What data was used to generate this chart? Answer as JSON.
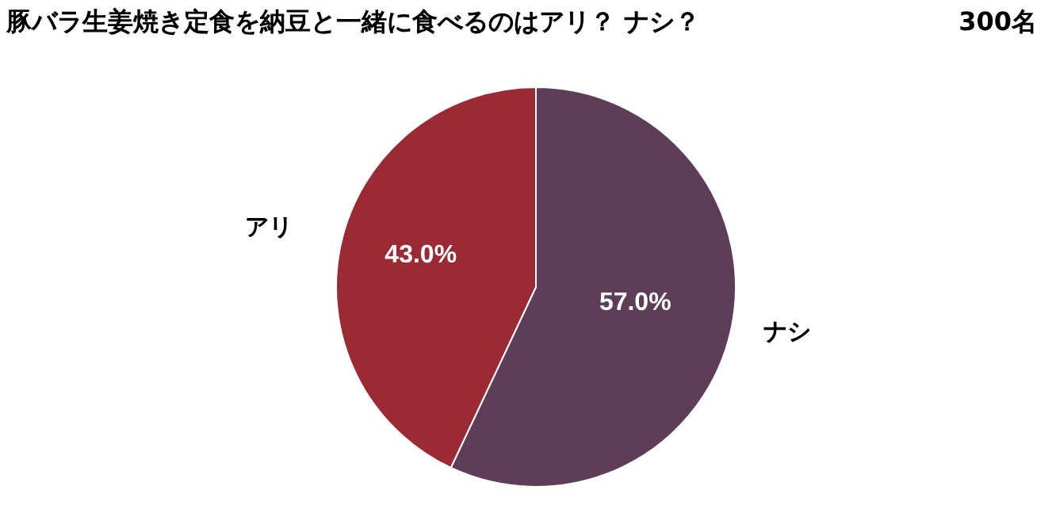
{
  "chart_data": {
    "type": "pie",
    "title": "豚バラ生姜焼き定食を納豆と一緒に食べるのはアリ？ ナシ？",
    "subtitle": "300名",
    "categories": [
      "ナシ",
      "アリ"
    ],
    "values": [
      57.0,
      43.0
    ],
    "colors": [
      "#5e3d58",
      "#9b2a35"
    ],
    "value_labels": [
      "57.0%",
      "43.0%"
    ],
    "legend": false
  }
}
